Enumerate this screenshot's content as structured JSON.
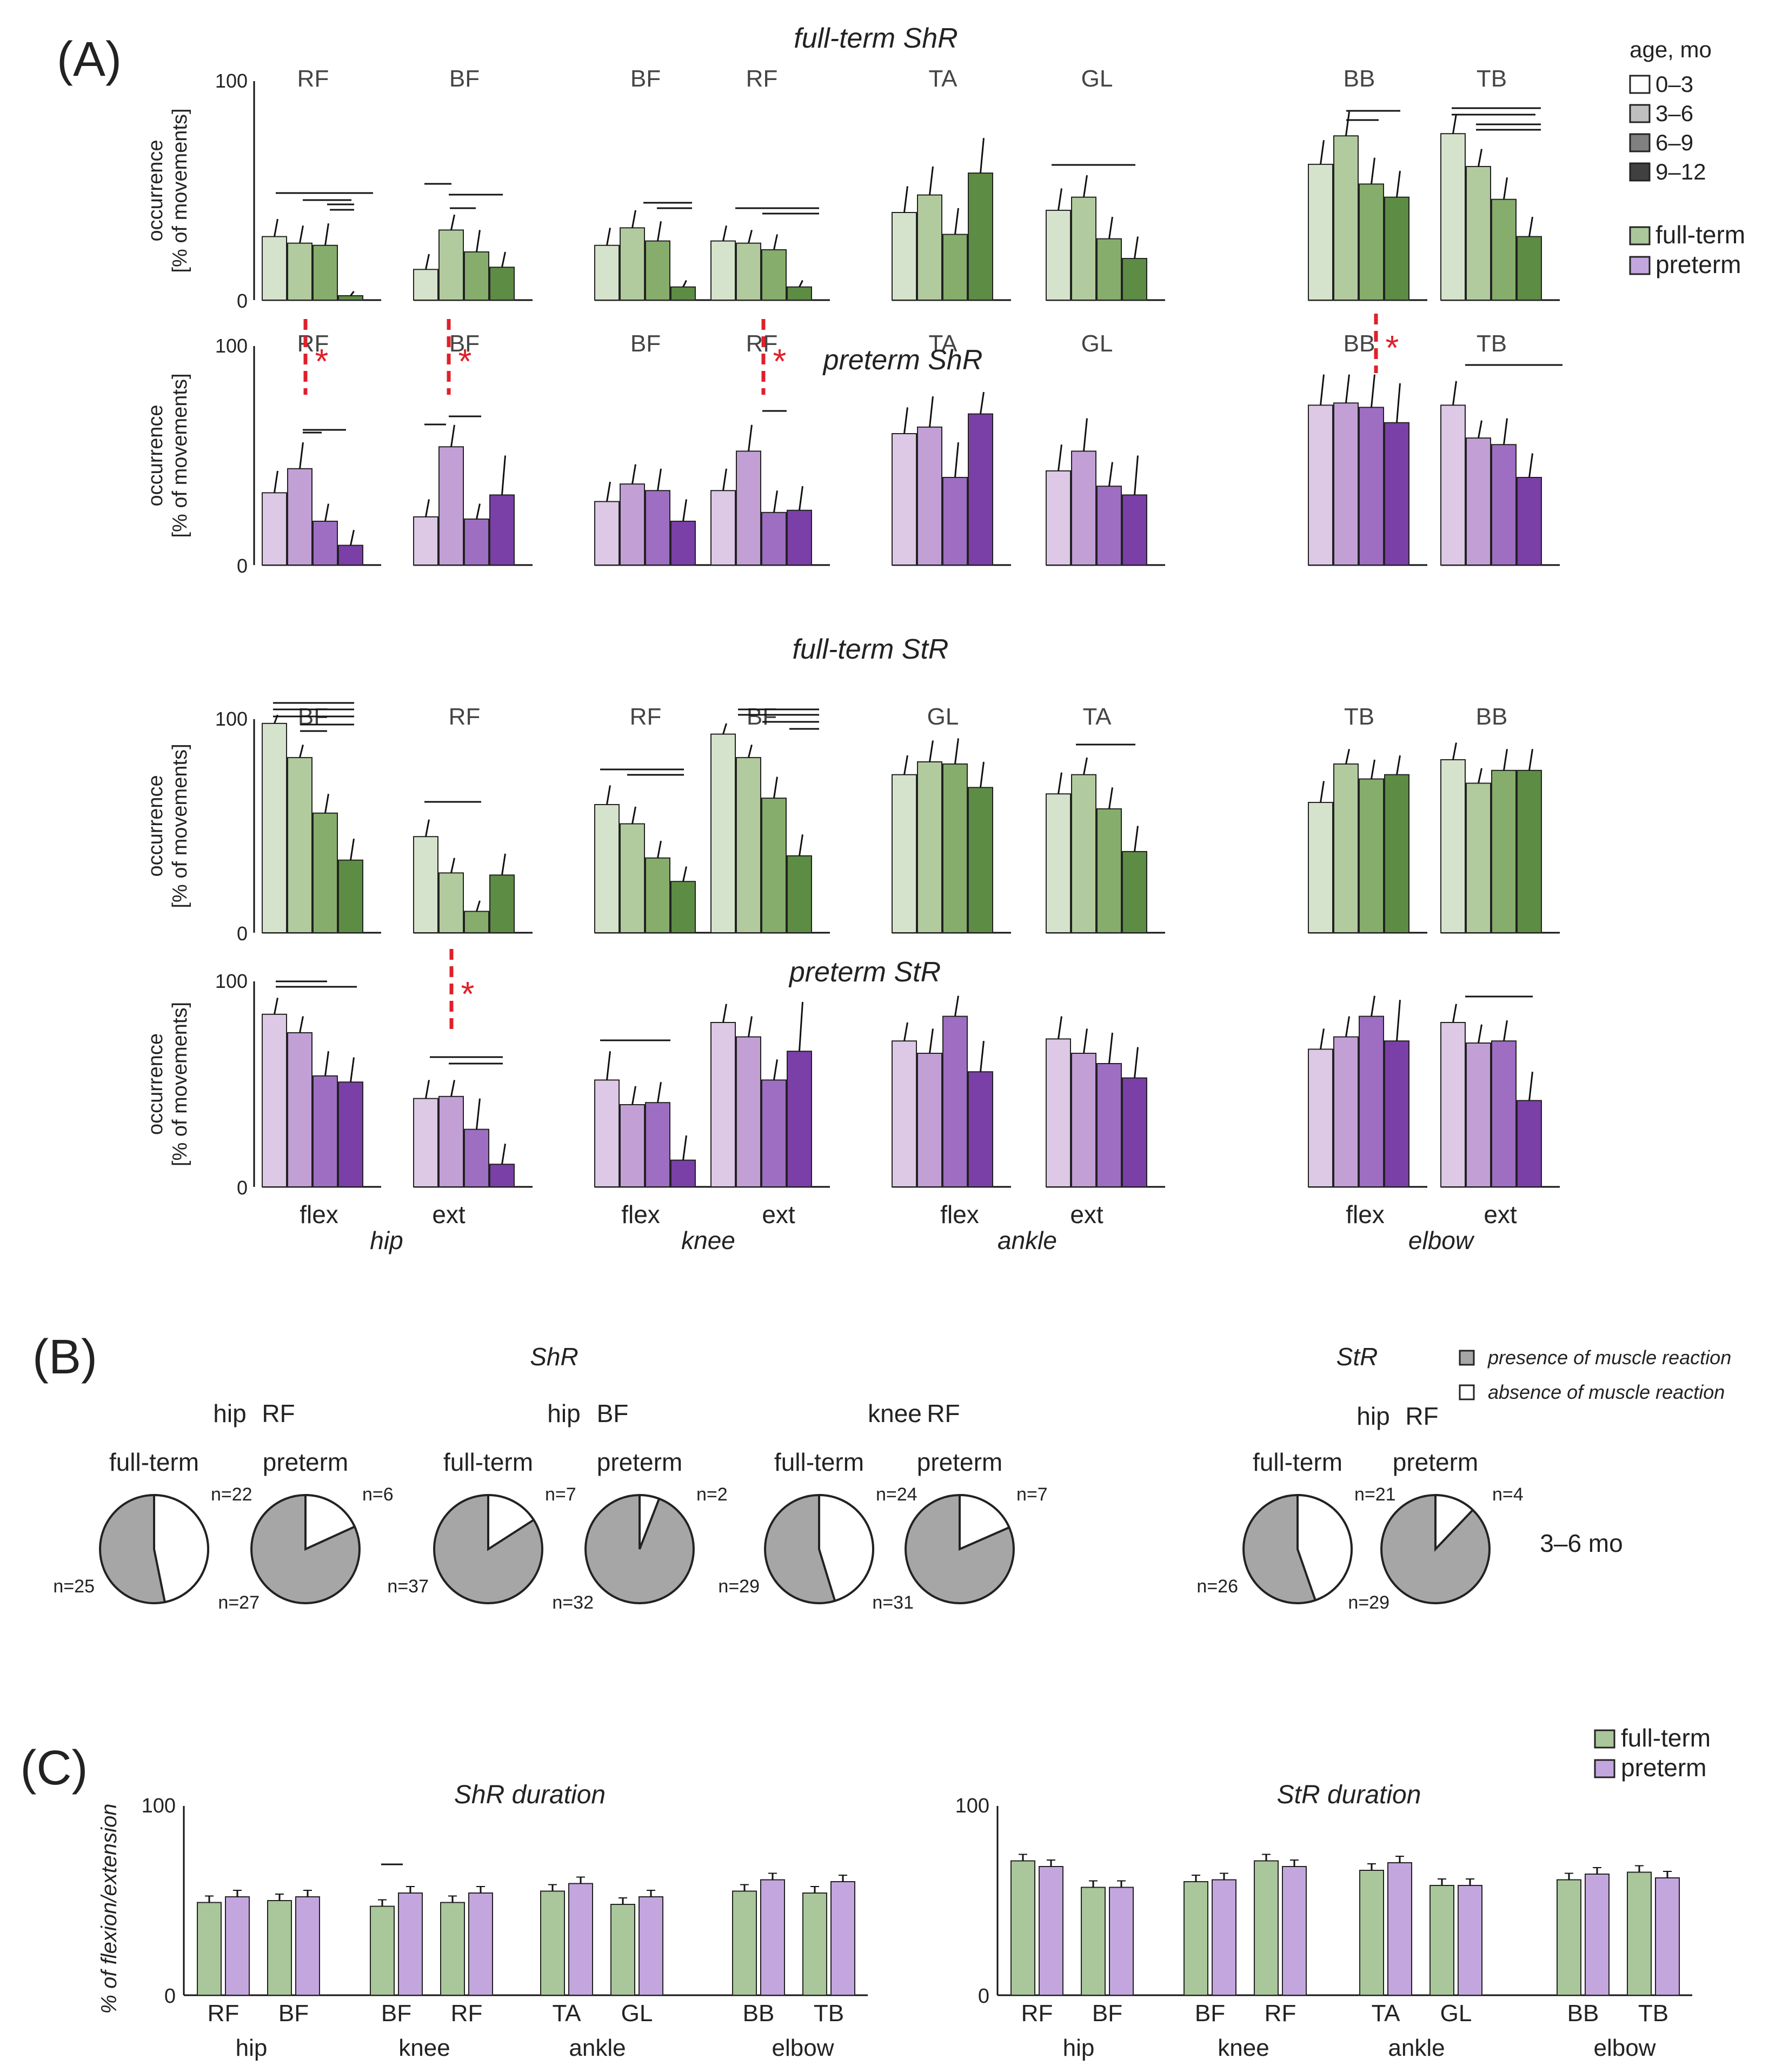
{
  "colors": {
    "full_term": [
      "#d6e3cc",
      "#b2cb9e",
      "#86ad6b",
      "#5d8c44"
    ],
    "preterm": [
      "#ddc8e6",
      "#c2a0d6",
      "#9e6ec2",
      "#7b3fa8"
    ],
    "dur_full": "#a9c79a",
    "dur_pre": "#c4a6df",
    "star": "#e0202a",
    "pie_gray": "#a6a6a6"
  },
  "panel_labels": {
    "A": "(A)",
    "B": "(B)",
    "C": "(C)"
  },
  "axis": {
    "ylabel_line1": "occurrence",
    "ylabel_line2": "[% of movements]",
    "tick_100": "100",
    "tick_0": "0",
    "c_ylabel": "% of flexion/extension"
  },
  "legend_A": {
    "title": "age, mo",
    "ages": [
      "0–3",
      "3–6",
      "6–9",
      "9–12"
    ],
    "groups": [
      "full-term",
      "preterm"
    ]
  },
  "legend_B": {
    "presence": "presence of muscle reaction",
    "absence": "absence of muscle reaction"
  },
  "legend_C": {
    "groups": [
      "full-term",
      "preterm"
    ]
  },
  "chart_data": [
    {
      "type": "bar",
      "title": "full-term ShR",
      "categories": [
        "0–3",
        "3–6",
        "6–9",
        "9–12"
      ],
      "ylim": [
        0,
        100
      ],
      "ylabel": "occurrence [% of movements]",
      "groups": [
        {
          "muscle": "RF",
          "values": [
            29,
            26,
            25,
            2
          ]
        },
        {
          "muscle": "BF",
          "values": [
            14,
            32,
            22,
            15
          ]
        },
        {
          "muscle": "BF",
          "values": [
            25,
            33,
            27,
            6
          ]
        },
        {
          "muscle": "RF",
          "values": [
            27,
            26,
            23,
            6
          ]
        },
        {
          "muscle": "TA",
          "values": [
            40,
            48,
            30,
            58
          ]
        },
        {
          "muscle": "GL",
          "values": [
            41,
            47,
            28,
            19
          ]
        },
        {
          "muscle": "BB",
          "values": [
            62,
            75,
            53,
            47
          ]
        },
        {
          "muscle": "TB",
          "values": [
            76,
            61,
            46,
            29
          ]
        }
      ]
    },
    {
      "type": "bar",
      "title": "preterm ShR",
      "categories": [
        "0–3",
        "3–6",
        "6–9",
        "9–12"
      ],
      "ylim": [
        0,
        100
      ],
      "ylabel": "occurrence [% of movements]",
      "groups": [
        {
          "muscle": "RF",
          "values": [
            33,
            44,
            20,
            9
          ]
        },
        {
          "muscle": "BF",
          "values": [
            22,
            54,
            21,
            32
          ]
        },
        {
          "muscle": "BF",
          "values": [
            29,
            37,
            34,
            20
          ]
        },
        {
          "muscle": "RF",
          "values": [
            34,
            52,
            24,
            25
          ]
        },
        {
          "muscle": "TA",
          "values": [
            60,
            63,
            40,
            69
          ]
        },
        {
          "muscle": "GL",
          "values": [
            43,
            52,
            36,
            32
          ]
        },
        {
          "muscle": "BB",
          "values": [
            73,
            74,
            72,
            65
          ]
        },
        {
          "muscle": "TB",
          "values": [
            73,
            58,
            55,
            40
          ]
        }
      ],
      "significance_marks": [
        "*",
        "*",
        "*",
        "*"
      ]
    },
    {
      "type": "bar",
      "title": "full-term StR",
      "categories": [
        "0–3",
        "3–6",
        "6–9",
        "9–12"
      ],
      "ylim": [
        0,
        100
      ],
      "ylabel": "occurrence [% of movements]",
      "groups": [
        {
          "muscle": "BF",
          "values": [
            98,
            82,
            56,
            34
          ]
        },
        {
          "muscle": "RF",
          "values": [
            45,
            28,
            10,
            27
          ]
        },
        {
          "muscle": "RF",
          "values": [
            60,
            51,
            35,
            24
          ]
        },
        {
          "muscle": "BF",
          "values": [
            93,
            82,
            63,
            36
          ]
        },
        {
          "muscle": "GL",
          "values": [
            74,
            80,
            79,
            68
          ]
        },
        {
          "muscle": "TA",
          "values": [
            65,
            74,
            58,
            38
          ]
        },
        {
          "muscle": "TB",
          "values": [
            61,
            79,
            72,
            74
          ]
        },
        {
          "muscle": "BB",
          "values": [
            81,
            70,
            76,
            76
          ]
        }
      ]
    },
    {
      "type": "bar",
      "title": "preterm StR",
      "categories": [
        "0–3",
        "3–6",
        "6–9",
        "9–12"
      ],
      "ylim": [
        0,
        100
      ],
      "ylabel": "occurrence [% of movements]",
      "groups": [
        {
          "muscle": "",
          "values": [
            84,
            75,
            54,
            51
          ]
        },
        {
          "muscle": "",
          "values": [
            43,
            44,
            28,
            11
          ]
        },
        {
          "muscle": "",
          "values": [
            52,
            40,
            41,
            13
          ]
        },
        {
          "muscle": "",
          "values": [
            80,
            73,
            52,
            66
          ]
        },
        {
          "muscle": "",
          "values": [
            71,
            65,
            83,
            56
          ]
        },
        {
          "muscle": "",
          "values": [
            72,
            65,
            60,
            53
          ]
        },
        {
          "muscle": "",
          "values": [
            67,
            73,
            83,
            71
          ]
        },
        {
          "muscle": "",
          "values": [
            80,
            70,
            71,
            42
          ]
        }
      ],
      "significance_marks": [
        "*"
      ],
      "x_labels": [
        "flex",
        "ext",
        "flex",
        "ext",
        "flex",
        "ext",
        "flex",
        "ext"
      ],
      "joints": [
        "hip",
        "knee",
        "ankle",
        "elbow"
      ]
    },
    {
      "type": "pie",
      "section_titles": [
        "ShR",
        "StR"
      ],
      "period": "3–6 mo",
      "pairs": [
        {
          "joint": "hip",
          "muscle": "RF",
          "full_term": {
            "label": "full-term",
            "present": 25,
            "absent": 22,
            "present_text": "n=25",
            "absent_text": "n=22"
          },
          "preterm": {
            "label": "preterm",
            "present": 27,
            "absent": 6,
            "present_text": "n=27",
            "absent_text": "n=6"
          }
        },
        {
          "joint": "hip",
          "muscle": "BF",
          "full_term": {
            "label": "full-term",
            "present": 37,
            "absent": 7,
            "present_text": "n=37",
            "absent_text": "n=7"
          },
          "preterm": {
            "label": "preterm",
            "present": 32,
            "absent": 2,
            "present_text": "n=32",
            "absent_text": "n=2"
          }
        },
        {
          "joint": "knee",
          "muscle": "RF",
          "full_term": {
            "label": "full-term",
            "present": 29,
            "absent": 24,
            "present_text": "n=29",
            "absent_text": "n=24"
          },
          "preterm": {
            "label": "preterm",
            "present": 31,
            "absent": 7,
            "present_text": "n=31",
            "absent_text": "n=7"
          }
        },
        {
          "joint": "hip",
          "muscle": "RF",
          "full_term": {
            "label": "full-term",
            "present": 26,
            "absent": 21,
            "present_text": "n=26",
            "absent_text": "n=21"
          },
          "preterm": {
            "label": "preterm",
            "present": 29,
            "absent": 4,
            "present_text": "n=29",
            "absent_text": "n=4"
          }
        }
      ]
    },
    {
      "type": "bar",
      "title": "ShR duration",
      "ylim": [
        0,
        100
      ],
      "ylabel": "% of flexion/extension",
      "categories": [
        "RF",
        "BF",
        "BF",
        "RF",
        "TA",
        "GL",
        "BB",
        "TB"
      ],
      "joints": [
        "hip",
        "knee",
        "ankle",
        "elbow"
      ],
      "series": [
        {
          "name": "full-term",
          "values": [
            49,
            50,
            47,
            49,
            55,
            48,
            55,
            54
          ]
        },
        {
          "name": "preterm",
          "values": [
            52,
            52,
            54,
            54,
            59,
            52,
            61,
            60
          ]
        }
      ]
    },
    {
      "type": "bar",
      "title": "StR duration",
      "ylim": [
        0,
        100
      ],
      "ylabel": "% of flexion/extension",
      "categories": [
        "RF",
        "BF",
        "BF",
        "RF",
        "TA",
        "GL",
        "BB",
        "TB"
      ],
      "joints": [
        "hip",
        "knee",
        "ankle",
        "elbow"
      ],
      "series": [
        {
          "name": "full-term",
          "values": [
            71,
            57,
            60,
            71,
            66,
            58,
            61,
            65
          ]
        },
        {
          "name": "preterm",
          "values": [
            68,
            57,
            61,
            68,
            70,
            58,
            64,
            62
          ]
        }
      ]
    }
  ]
}
